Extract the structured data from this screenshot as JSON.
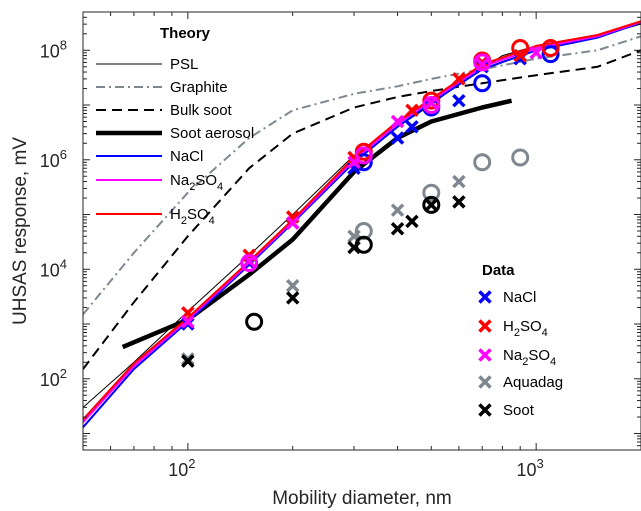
{
  "chart_data": {
    "type": "scatter",
    "xlabel": "Mobility diameter, nm",
    "ylabel": "UHSAS response, mV",
    "xscale": "log",
    "yscale": "log",
    "xlim": [
      50,
      2000
    ],
    "ylim": [
      5,
      500000000
    ],
    "x_ticks": [
      {
        "value": 100,
        "base": "10",
        "exp": "2"
      },
      {
        "value": 1000,
        "base": "10",
        "exp": "3"
      }
    ],
    "y_ticks": [
      {
        "value": 100,
        "base": "10",
        "exp": "2"
      },
      {
        "value": 10000,
        "base": "10",
        "exp": "4"
      },
      {
        "value": 1000000,
        "base": "10",
        "exp": "6"
      },
      {
        "value": 100000000,
        "base": "10",
        "exp": "8"
      }
    ],
    "grid": false,
    "theory_legend": {
      "title": "Theory",
      "placement": "top-left",
      "entries": [
        {
          "key": "psl",
          "label": "PSL"
        },
        {
          "key": "graphite",
          "label": "Graphite"
        },
        {
          "key": "bulk_soot",
          "label": "Bulk soot"
        },
        {
          "key": "soot_aerosol",
          "label": "Soot aerosol"
        },
        {
          "key": "nacl",
          "label": "NaCl"
        },
        {
          "key": "na2so4",
          "label": "Na",
          "sub": "2",
          "rest": "SO",
          "sub2": "4"
        },
        {
          "key": "h2so4",
          "label": "H",
          "sub": "2",
          "rest": "SO",
          "sub2": "4"
        }
      ]
    },
    "data_legend": {
      "title": "Data",
      "placement": "bottom-right",
      "entries": [
        {
          "key": "nacl",
          "label": "NaCl"
        },
        {
          "key": "h2so4",
          "label": "H",
          "sub": "2",
          "rest": "SO",
          "sub2": "4"
        },
        {
          "key": "na2so4",
          "label": "Na",
          "sub": "2",
          "rest": "SO",
          "sub2": "4"
        },
        {
          "key": "aquadag",
          "label": "Aquadag"
        },
        {
          "key": "soot",
          "label": "Soot"
        }
      ]
    },
    "theory_series": [
      {
        "key": "psl",
        "color": "#000000",
        "width": 1,
        "dash": "",
        "x": [
          50,
          70,
          100,
          150,
          200,
          300,
          400,
          500,
          600,
          700,
          800,
          1000,
          1200,
          1500,
          1800,
          2000
        ],
        "y": [
          30,
          200,
          1700,
          18000,
          100000,
          1200000,
          4000000,
          10000000,
          25000000,
          45000000,
          80000000,
          120000000,
          150000000,
          170000000,
          250000000,
          300000000
        ]
      },
      {
        "key": "graphite",
        "color": "#7f8790",
        "width": 2,
        "dash": "9,4,2,4",
        "x": [
          50,
          70,
          100,
          150,
          200,
          300,
          400,
          500,
          700,
          1000,
          1500,
          2000
        ],
        "y": [
          1500,
          20000,
          250000,
          2500000,
          8000000,
          16000000,
          22000000,
          30000000,
          45000000,
          70000000,
          100000000,
          180000000
        ]
      },
      {
        "key": "bulk_soot",
        "color": "#000000",
        "width": 2,
        "dash": "10,6",
        "x": [
          50,
          70,
          100,
          150,
          200,
          300,
          400,
          500,
          700,
          1000,
          1500,
          2000
        ],
        "y": [
          150,
          2500,
          40000,
          700000,
          3000000,
          9000000,
          14000000,
          18000000,
          25000000,
          35000000,
          50000000,
          100000000
        ]
      },
      {
        "key": "soot_aerosol",
        "color": "#000000",
        "width": 4.5,
        "dash": "",
        "x": [
          65,
          100,
          150,
          200,
          300,
          400,
          500,
          700,
          850
        ],
        "y": [
          380,
          1200,
          8000,
          35000,
          600000,
          2500000,
          5000000,
          9000000,
          12000000
        ]
      },
      {
        "key": "nacl",
        "color": "#0000ff",
        "width": 2,
        "dash": "",
        "x": [
          50,
          70,
          100,
          150,
          200,
          300,
          400,
          500,
          700,
          1000,
          1500,
          2000
        ],
        "y": [
          13,
          150,
          1100,
          12000,
          70000,
          900000,
          4000000,
          11000000,
          45000000,
          100000000,
          170000000,
          320000000
        ]
      },
      {
        "key": "na2so4",
        "color": "#ff00ff",
        "width": 2,
        "dash": "",
        "x": [
          50,
          70,
          100,
          150,
          200,
          300,
          400,
          500,
          700,
          1000,
          1500,
          2000
        ],
        "y": [
          16,
          170,
          1200,
          13000,
          75000,
          1000000,
          4500000,
          12000000,
          50000000,
          110000000,
          180000000,
          330000000
        ]
      },
      {
        "key": "h2so4",
        "color": "#ff0000",
        "width": 2,
        "dash": "",
        "x": [
          50,
          70,
          100,
          150,
          200,
          300,
          400,
          500,
          700,
          1000,
          1500,
          2000
        ],
        "y": [
          18,
          190,
          1300,
          14000,
          80000,
          1100000,
          5000000,
          13000000,
          55000000,
          120000000,
          190000000,
          340000000
        ]
      }
    ],
    "data_series": [
      {
        "key": "nacl",
        "color": "#0000ff",
        "x_points": [
          {
            "x": 100,
            "y": 1000
          },
          {
            "x": 150,
            "y": 13000
          },
          {
            "x": 200,
            "y": 70000
          },
          {
            "x": 300,
            "y": 700000
          },
          {
            "x": 400,
            "y": 2500000
          },
          {
            "x": 440,
            "y": 4000000
          },
          {
            "x": 600,
            "y": 12000000
          },
          {
            "x": 700,
            "y": 50000000
          },
          {
            "x": 900,
            "y": 70000000
          }
        ],
        "o_points": [
          {
            "x": 320,
            "y": 900000
          },
          {
            "x": 500,
            "y": 9000000
          },
          {
            "x": 700,
            "y": 25000000
          },
          {
            "x": 1100,
            "y": 85000000
          }
        ]
      },
      {
        "key": "h2so4",
        "color": "#ff0000",
        "x_points": [
          {
            "x": 100,
            "y": 1600
          },
          {
            "x": 150,
            "y": 18000
          },
          {
            "x": 200,
            "y": 90000
          },
          {
            "x": 300,
            "y": 1100000
          },
          {
            "x": 440,
            "y": 8000000
          },
          {
            "x": 600,
            "y": 30000000
          },
          {
            "x": 700,
            "y": 60000000
          },
          {
            "x": 900,
            "y": 80000000
          }
        ],
        "o_points": [
          {
            "x": 320,
            "y": 1400000
          },
          {
            "x": 500,
            "y": 12000000
          },
          {
            "x": 700,
            "y": 65000000
          },
          {
            "x": 900,
            "y": 110000000
          },
          {
            "x": 1100,
            "y": 110000000
          }
        ]
      },
      {
        "key": "na2so4",
        "color": "#ff00ff",
        "x_points": [
          {
            "x": 100,
            "y": 1100
          },
          {
            "x": 150,
            "y": 14000
          },
          {
            "x": 200,
            "y": 70000
          },
          {
            "x": 300,
            "y": 900000
          },
          {
            "x": 400,
            "y": 5000000
          },
          {
            "x": 500,
            "y": 11000000
          },
          {
            "x": 700,
            "y": 55000000
          },
          {
            "x": 1000,
            "y": 90000000
          }
        ],
        "o_points": [
          {
            "x": 150,
            "y": 13000
          },
          {
            "x": 320,
            "y": 1200000
          },
          {
            "x": 500,
            "y": 10000000
          },
          {
            "x": 700,
            "y": 60000000
          }
        ]
      },
      {
        "key": "aquadag",
        "color": "#7f8790",
        "x_points": [
          {
            "x": 100,
            "y": 230
          },
          {
            "x": 200,
            "y": 5000
          },
          {
            "x": 300,
            "y": 40000
          },
          {
            "x": 400,
            "y": 120000
          },
          {
            "x": 600,
            "y": 400000
          }
        ],
        "o_points": [
          {
            "x": 320,
            "y": 50000
          },
          {
            "x": 500,
            "y": 250000
          },
          {
            "x": 700,
            "y": 900000
          },
          {
            "x": 900,
            "y": 1100000
          }
        ]
      },
      {
        "key": "soot",
        "color": "#000000",
        "x_points": [
          {
            "x": 100,
            "y": 210
          },
          {
            "x": 200,
            "y": 3000
          },
          {
            "x": 300,
            "y": 25000
          },
          {
            "x": 400,
            "y": 55000
          },
          {
            "x": 440,
            "y": 75000
          },
          {
            "x": 500,
            "y": 150000
          },
          {
            "x": 600,
            "y": 170000
          }
        ],
        "o_points": [
          {
            "x": 155,
            "y": 1100
          },
          {
            "x": 320,
            "y": 28000
          },
          {
            "x": 500,
            "y": 150000
          }
        ]
      }
    ]
  }
}
